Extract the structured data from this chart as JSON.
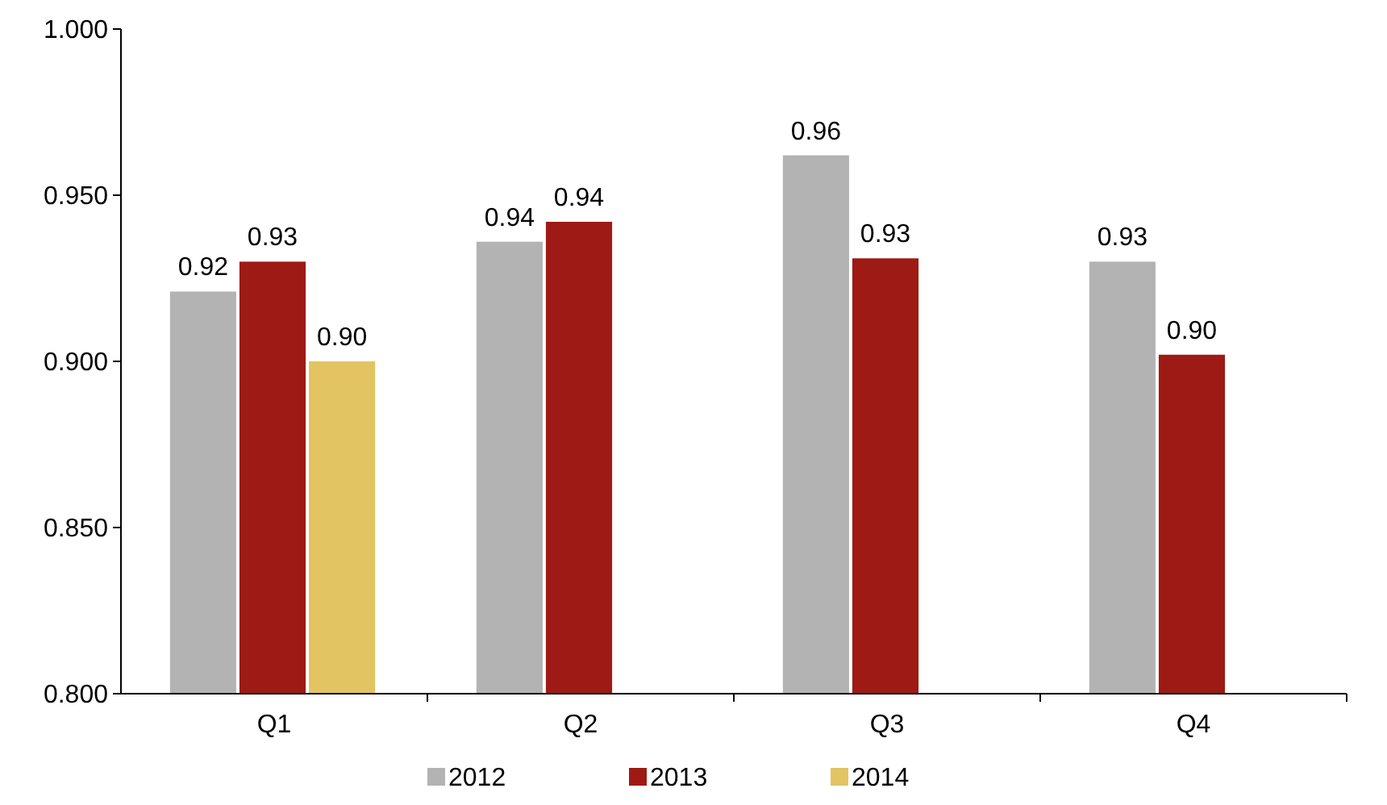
{
  "chart_data": {
    "type": "bar",
    "categories": [
      "Q1",
      "Q2",
      "Q3",
      "Q4"
    ],
    "series": [
      {
        "name": "2012",
        "color": "#b3b3b3",
        "values": [
          0.921,
          0.936,
          0.962,
          0.93
        ],
        "value_labels": [
          "0.92",
          "0.94",
          "0.96",
          "0.93"
        ]
      },
      {
        "name": "2013",
        "color": "#9e1a14",
        "values": [
          0.93,
          0.942,
          0.931,
          0.902
        ],
        "value_labels": [
          "0.93",
          "0.94",
          "0.93",
          "0.90"
        ]
      },
      {
        "name": "2014",
        "color": "#e3c462",
        "values": [
          0.9,
          null,
          null,
          null
        ],
        "value_labels": [
          "0.90",
          null,
          null,
          null
        ]
      }
    ],
    "ylim": [
      0.8,
      1.0
    ],
    "yticks": [
      {
        "value": 0.8,
        "label": "0.800"
      },
      {
        "value": 0.85,
        "label": "0.850"
      },
      {
        "value": 0.9,
        "label": "0.900"
      },
      {
        "value": 0.95,
        "label": "0.950"
      },
      {
        "value": 1.0,
        "label": "1.000"
      }
    ],
    "grid": false,
    "legend": "bottom"
  }
}
